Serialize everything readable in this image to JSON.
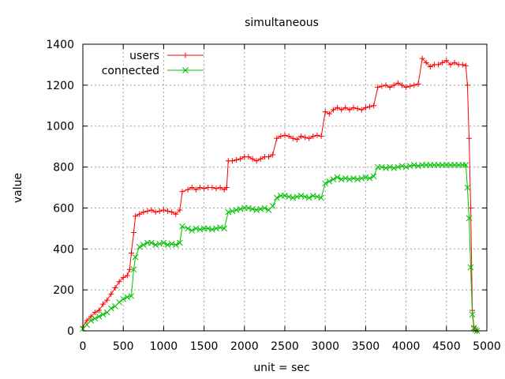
{
  "chart_data": {
    "type": "line",
    "title": "simultaneous",
    "xlabel": "unit = sec",
    "ylabel": "value",
    "xlim": [
      0,
      5000
    ],
    "ylim": [
      0,
      1400
    ],
    "xticks": [
      0,
      500,
      1000,
      1500,
      2000,
      2500,
      3000,
      3500,
      4000,
      4500,
      5000
    ],
    "yticks": [
      0,
      200,
      400,
      600,
      800,
      1000,
      1200,
      1400
    ],
    "grid": true,
    "legend_position": "top-left",
    "series": [
      {
        "name": "users",
        "color": "#ff0000",
        "marker": "plus",
        "points": [
          [
            0,
            20
          ],
          [
            50,
            50
          ],
          [
            100,
            70
          ],
          [
            150,
            90
          ],
          [
            200,
            100
          ],
          [
            250,
            130
          ],
          [
            300,
            150
          ],
          [
            350,
            180
          ],
          [
            400,
            210
          ],
          [
            450,
            240
          ],
          [
            500,
            260
          ],
          [
            550,
            270
          ],
          [
            580,
            300
          ],
          [
            600,
            380
          ],
          [
            630,
            480
          ],
          [
            650,
            560
          ],
          [
            700,
            570
          ],
          [
            750,
            580
          ],
          [
            800,
            585
          ],
          [
            850,
            590
          ],
          [
            900,
            580
          ],
          [
            950,
            585
          ],
          [
            1000,
            590
          ],
          [
            1050,
            585
          ],
          [
            1100,
            580
          ],
          [
            1150,
            570
          ],
          [
            1200,
            590
          ],
          [
            1230,
            680
          ],
          [
            1300,
            690
          ],
          [
            1350,
            700
          ],
          [
            1400,
            690
          ],
          [
            1450,
            700
          ],
          [
            1500,
            695
          ],
          [
            1550,
            700
          ],
          [
            1600,
            700
          ],
          [
            1650,
            695
          ],
          [
            1700,
            700
          ],
          [
            1750,
            690
          ],
          [
            1780,
            700
          ],
          [
            1800,
            830
          ],
          [
            1850,
            830
          ],
          [
            1900,
            835
          ],
          [
            1950,
            840
          ],
          [
            2000,
            850
          ],
          [
            2050,
            850
          ],
          [
            2100,
            840
          ],
          [
            2150,
            830
          ],
          [
            2200,
            840
          ],
          [
            2250,
            850
          ],
          [
            2300,
            850
          ],
          [
            2350,
            860
          ],
          [
            2400,
            940
          ],
          [
            2450,
            950
          ],
          [
            2500,
            955
          ],
          [
            2550,
            950
          ],
          [
            2600,
            940
          ],
          [
            2650,
            935
          ],
          [
            2700,
            950
          ],
          [
            2750,
            945
          ],
          [
            2800,
            940
          ],
          [
            2850,
            950
          ],
          [
            2900,
            955
          ],
          [
            2950,
            950
          ],
          [
            3000,
            1070
          ],
          [
            3050,
            1060
          ],
          [
            3100,
            1080
          ],
          [
            3150,
            1090
          ],
          [
            3200,
            1080
          ],
          [
            3250,
            1090
          ],
          [
            3300,
            1080
          ],
          [
            3350,
            1090
          ],
          [
            3400,
            1085
          ],
          [
            3450,
            1080
          ],
          [
            3500,
            1090
          ],
          [
            3550,
            1095
          ],
          [
            3600,
            1100
          ],
          [
            3650,
            1190
          ],
          [
            3700,
            1195
          ],
          [
            3750,
            1200
          ],
          [
            3800,
            1190
          ],
          [
            3850,
            1200
          ],
          [
            3900,
            1210
          ],
          [
            3950,
            1200
          ],
          [
            4000,
            1190
          ],
          [
            4050,
            1195
          ],
          [
            4100,
            1200
          ],
          [
            4150,
            1205
          ],
          [
            4200,
            1330
          ],
          [
            4250,
            1310
          ],
          [
            4300,
            1290
          ],
          [
            4350,
            1300
          ],
          [
            4400,
            1300
          ],
          [
            4450,
            1310
          ],
          [
            4500,
            1320
          ],
          [
            4550,
            1300
          ],
          [
            4600,
            1310
          ],
          [
            4650,
            1300
          ],
          [
            4700,
            1300
          ],
          [
            4740,
            1295
          ],
          [
            4760,
            1200
          ],
          [
            4780,
            940
          ],
          [
            4800,
            600
          ],
          [
            4820,
            100
          ],
          [
            4840,
            20
          ],
          [
            4860,
            5
          ],
          [
            4880,
            0
          ]
        ]
      },
      {
        "name": "connected",
        "color": "#00c000",
        "marker": "cross",
        "points": [
          [
            0,
            10
          ],
          [
            50,
            30
          ],
          [
            100,
            50
          ],
          [
            150,
            60
          ],
          [
            200,
            70
          ],
          [
            250,
            80
          ],
          [
            300,
            90
          ],
          [
            350,
            110
          ],
          [
            400,
            120
          ],
          [
            450,
            140
          ],
          [
            500,
            155
          ],
          [
            550,
            165
          ],
          [
            600,
            170
          ],
          [
            630,
            300
          ],
          [
            650,
            360
          ],
          [
            700,
            410
          ],
          [
            750,
            420
          ],
          [
            800,
            430
          ],
          [
            850,
            430
          ],
          [
            900,
            420
          ],
          [
            950,
            425
          ],
          [
            1000,
            430
          ],
          [
            1050,
            420
          ],
          [
            1100,
            425
          ],
          [
            1150,
            420
          ],
          [
            1200,
            430
          ],
          [
            1230,
            510
          ],
          [
            1300,
            500
          ],
          [
            1350,
            490
          ],
          [
            1400,
            500
          ],
          [
            1450,
            495
          ],
          [
            1500,
            500
          ],
          [
            1550,
            500
          ],
          [
            1600,
            495
          ],
          [
            1650,
            500
          ],
          [
            1700,
            505
          ],
          [
            1750,
            500
          ],
          [
            1800,
            580
          ],
          [
            1850,
            585
          ],
          [
            1900,
            590
          ],
          [
            1950,
            595
          ],
          [
            2000,
            600
          ],
          [
            2050,
            600
          ],
          [
            2100,
            595
          ],
          [
            2150,
            590
          ],
          [
            2200,
            595
          ],
          [
            2250,
            600
          ],
          [
            2300,
            590
          ],
          [
            2350,
            610
          ],
          [
            2400,
            650
          ],
          [
            2450,
            660
          ],
          [
            2500,
            660
          ],
          [
            2550,
            655
          ],
          [
            2600,
            650
          ],
          [
            2650,
            655
          ],
          [
            2700,
            660
          ],
          [
            2750,
            655
          ],
          [
            2800,
            650
          ],
          [
            2850,
            660
          ],
          [
            2900,
            655
          ],
          [
            2950,
            650
          ],
          [
            3000,
            720
          ],
          [
            3050,
            730
          ],
          [
            3100,
            740
          ],
          [
            3150,
            750
          ],
          [
            3200,
            740
          ],
          [
            3250,
            745
          ],
          [
            3300,
            740
          ],
          [
            3350,
            745
          ],
          [
            3400,
            740
          ],
          [
            3450,
            745
          ],
          [
            3500,
            750
          ],
          [
            3550,
            745
          ],
          [
            3600,
            755
          ],
          [
            3650,
            800
          ],
          [
            3700,
            800
          ],
          [
            3750,
            795
          ],
          [
            3800,
            800
          ],
          [
            3850,
            795
          ],
          [
            3900,
            800
          ],
          [
            3950,
            805
          ],
          [
            4000,
            800
          ],
          [
            4050,
            805
          ],
          [
            4100,
            810
          ],
          [
            4150,
            805
          ],
          [
            4200,
            810
          ],
          [
            4250,
            810
          ],
          [
            4300,
            810
          ],
          [
            4350,
            810
          ],
          [
            4400,
            810
          ],
          [
            4450,
            810
          ],
          [
            4500,
            810
          ],
          [
            4550,
            810
          ],
          [
            4600,
            810
          ],
          [
            4650,
            810
          ],
          [
            4700,
            810
          ],
          [
            4740,
            810
          ],
          [
            4760,
            700
          ],
          [
            4780,
            550
          ],
          [
            4800,
            310
          ],
          [
            4820,
            80
          ],
          [
            4840,
            15
          ],
          [
            4860,
            5
          ],
          [
            4880,
            0
          ]
        ]
      }
    ]
  }
}
